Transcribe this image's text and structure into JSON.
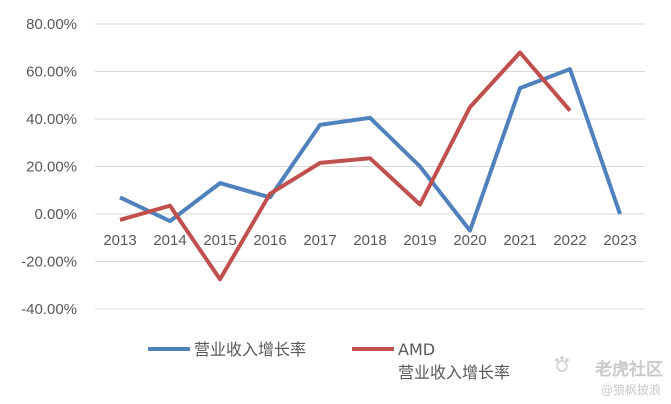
{
  "chart_data": {
    "type": "line",
    "title": "",
    "xlabel": "",
    "ylabel": "",
    "categories": [
      "2013",
      "2014",
      "2015",
      "2016",
      "2017",
      "2018",
      "2019",
      "2020",
      "2021",
      "2022",
      "2023"
    ],
    "ylim": [
      -0.4,
      0.8
    ],
    "yticks": [
      "80.00%",
      "60.00%",
      "40.00%",
      "20.00%",
      "0.00%",
      "-20.00%",
      "-40.00%"
    ],
    "ytick_values": [
      0.8,
      0.6,
      0.4,
      0.2,
      0.0,
      -0.2,
      -0.4
    ],
    "grid": true,
    "legend_position": "bottom",
    "series": [
      {
        "name": "营业收入增长率",
        "color": "#4f81bd",
        "values": [
          0.07,
          -0.03,
          0.13,
          0.07,
          0.375,
          0.405,
          0.2,
          -0.07,
          0.53,
          0.61,
          0.0
        ]
      },
      {
        "name": "AMD 营业收入增长率",
        "name_line1": "AMD",
        "name_line2": "营业收入增长率",
        "color": "#c0504d",
        "values": [
          -0.025,
          0.035,
          -0.275,
          0.085,
          0.215,
          0.235,
          0.04,
          0.45,
          0.68,
          0.435,
          null
        ]
      }
    ]
  },
  "watermark": {
    "logo": "老虎社区",
    "user": "@狼枫披浪",
    "logo_icon": "tiger-paw-icon"
  }
}
